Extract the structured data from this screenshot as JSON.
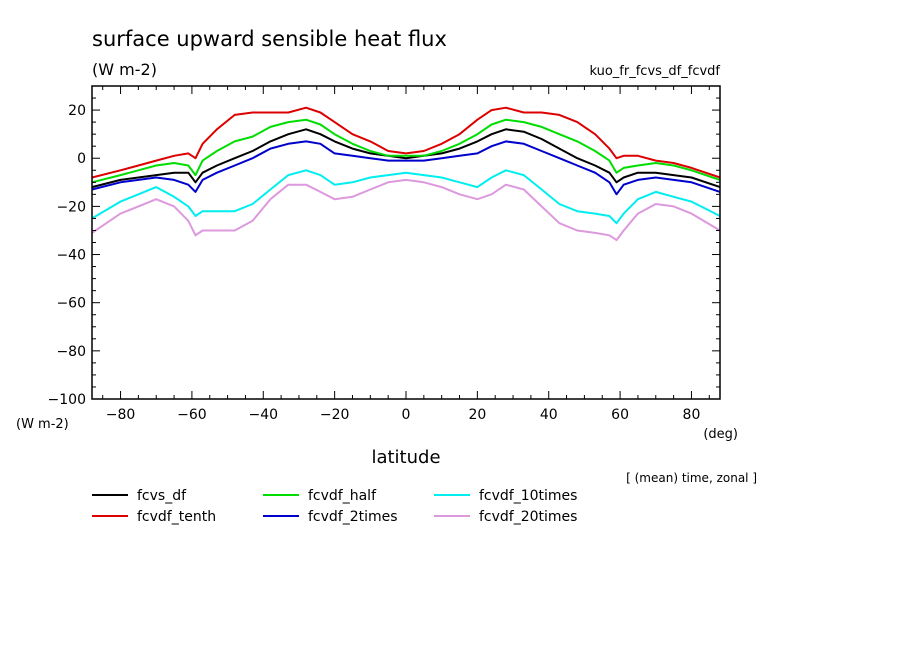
{
  "chart_data": {
    "type": "line",
    "title": "surface upward sensible heat flux",
    "units_label": "(W m-2)",
    "experiment": "kuo_fr_fcvs_df_fcvdf",
    "xlabel": "latitude",
    "x_unit": "(deg)",
    "y_unit": "(W m-2)",
    "averaging_note": "[ (mean) time, zonal ]",
    "xlim": [
      -88,
      88
    ],
    "ylim": [
      -100,
      30
    ],
    "xticks": [
      -80,
      -60,
      -40,
      -20,
      0,
      20,
      40,
      60,
      80
    ],
    "yticks": [
      -100,
      -80,
      -60,
      -40,
      -20,
      0,
      20
    ],
    "grid": false,
    "legend_position": "bottom",
    "x": [
      -88,
      -80,
      -75,
      -70,
      -65,
      -61,
      -59,
      -57,
      -53,
      -48,
      -43,
      -38,
      -33,
      -28,
      -24,
      -20,
      -15,
      -10,
      -5,
      0,
      5,
      10,
      15,
      20,
      24,
      28,
      33,
      38,
      43,
      48,
      53,
      57,
      59,
      61,
      65,
      70,
      75,
      80,
      88
    ],
    "series": [
      {
        "name": "fcvs_df",
        "color": "#000000",
        "values": [
          -12,
          -9,
          -8,
          -7,
          -6,
          -6,
          -10,
          -6,
          -3,
          0,
          3,
          7,
          10,
          12,
          10,
          7,
          4,
          2,
          1,
          0,
          1,
          2,
          4,
          7,
          10,
          12,
          11,
          8,
          4,
          0,
          -3,
          -6,
          -10,
          -8,
          -6,
          -6,
          -7,
          -8,
          -12
        ]
      },
      {
        "name": "fcvdf_tenth",
        "color": "#dd0000",
        "values": [
          -8,
          -5,
          -3,
          -1,
          1,
          2,
          0,
          6,
          12,
          18,
          19,
          19,
          19,
          21,
          19,
          15,
          10,
          7,
          3,
          2,
          3,
          6,
          10,
          16,
          20,
          21,
          19,
          19,
          18,
          15,
          10,
          4,
          0,
          1,
          1,
          -1,
          -2,
          -4,
          -8
        ]
      },
      {
        "name": "fcvdf_half",
        "color": "#00dd00",
        "values": [
          -10,
          -7,
          -5,
          -3,
          -2,
          -3,
          -7,
          -1,
          3,
          7,
          9,
          13,
          15,
          16,
          14,
          10,
          6,
          3,
          1,
          1,
          1,
          3,
          6,
          10,
          14,
          16,
          15,
          13,
          10,
          7,
          3,
          -1,
          -6,
          -4,
          -3,
          -2,
          -3,
          -5,
          -9
        ]
      },
      {
        "name": "fcvdf_2times",
        "color": "#0000cc",
        "values": [
          -13,
          -10,
          -9,
          -8,
          -9,
          -11,
          -14,
          -9,
          -6,
          -3,
          0,
          4,
          6,
          7,
          6,
          2,
          1,
          0,
          -1,
          -1,
          -1,
          0,
          1,
          2,
          5,
          7,
          6,
          3,
          0,
          -3,
          -6,
          -10,
          -15,
          -11,
          -9,
          -8,
          -9,
          -10,
          -14
        ]
      },
      {
        "name": "fcvdf_10times",
        "color": "#00eeee",
        "values": [
          -25,
          -18,
          -15,
          -12,
          -16,
          -20,
          -24,
          -22,
          -22,
          -22,
          -19,
          -13,
          -7,
          -5,
          -7,
          -11,
          -10,
          -8,
          -7,
          -6,
          -7,
          -8,
          -10,
          -12,
          -8,
          -5,
          -7,
          -13,
          -19,
          -22,
          -23,
          -24,
          -27,
          -23,
          -17,
          -14,
          -16,
          -18,
          -24
        ]
      },
      {
        "name": "fcvdf_20times",
        "color": "#dd99dd",
        "values": [
          -31,
          -23,
          -20,
          -17,
          -20,
          -26,
          -32,
          -30,
          -30,
          -30,
          -26,
          -17,
          -11,
          -11,
          -14,
          -17,
          -16,
          -13,
          -10,
          -9,
          -10,
          -12,
          -15,
          -17,
          -15,
          -11,
          -13,
          -20,
          -27,
          -30,
          -31,
          -32,
          -34,
          -30,
          -23,
          -19,
          -20,
          -23,
          -30
        ]
      }
    ]
  }
}
